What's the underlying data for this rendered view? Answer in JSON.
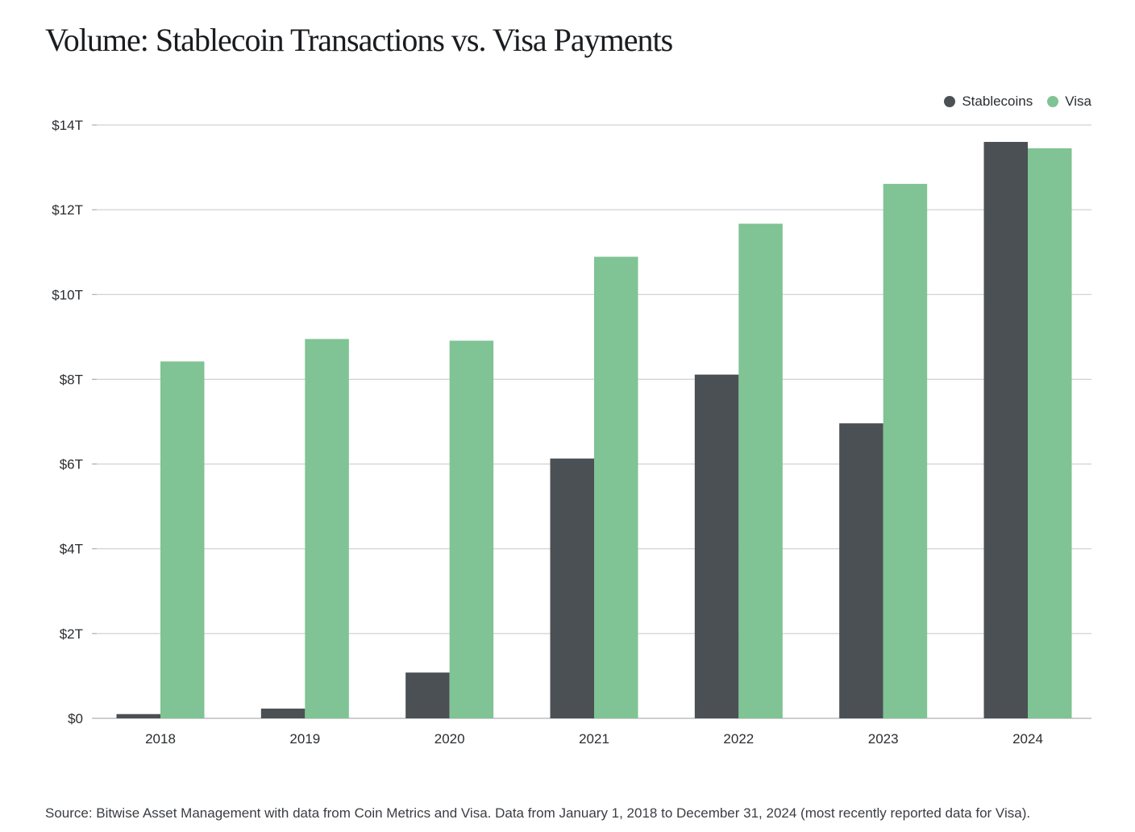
{
  "title": "Volume: Stablecoin Transactions vs. Visa Payments",
  "source": "Source: Bitwise Asset Management with data from Coin Metrics and Visa. Data from January 1, 2018 to December 31, 2024 (most recently reported data for Visa).",
  "colors": {
    "stablecoins": "#4b5055",
    "visa": "#80c394",
    "grid": "#c4c7cb",
    "axis": "#9a9ea3"
  },
  "chart_data": {
    "type": "bar",
    "title": "Volume: Stablecoin Transactions vs. Visa Payments",
    "xlabel": "",
    "ylabel": "",
    "categories": [
      "2018",
      "2019",
      "2020",
      "2021",
      "2022",
      "2023",
      "2024"
    ],
    "series": [
      {
        "name": "Stablecoins",
        "values": [
          0.1,
          0.23,
          1.08,
          6.13,
          8.11,
          6.96,
          13.6
        ]
      },
      {
        "name": "Visa",
        "values": [
          8.42,
          8.95,
          8.91,
          10.89,
          11.67,
          12.61,
          13.45
        ]
      }
    ],
    "ylim": [
      0,
      14
    ],
    "yticks": [
      0,
      2,
      4,
      6,
      8,
      10,
      12,
      14
    ],
    "ytick_labels": [
      "$0",
      "$2T",
      "$4T",
      "$6T",
      "$8T",
      "$10T",
      "$12T",
      "$14T"
    ],
    "grid": true,
    "legend_position": "top-right"
  }
}
